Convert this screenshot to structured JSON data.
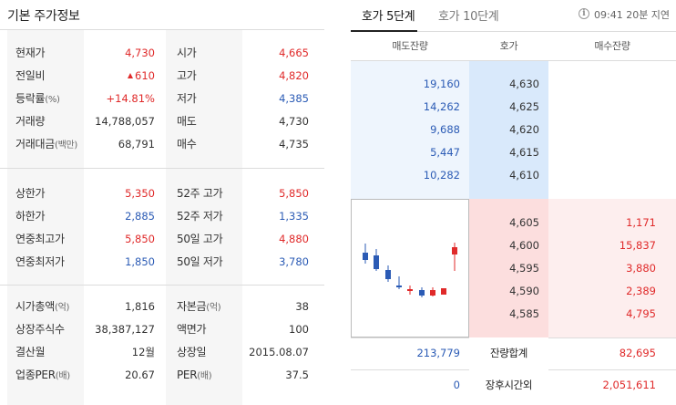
{
  "left": {
    "title": "기본 주가정보",
    "section1": [
      {
        "l_label": "현재가",
        "l_unit": "",
        "l_value": "4,730",
        "l_color": "red",
        "l_arrow": false,
        "r_label": "시가",
        "r_value": "4,665",
        "r_color": "red"
      },
      {
        "l_label": "전일비",
        "l_unit": "",
        "l_value": "610",
        "l_color": "red",
        "l_arrow": true,
        "r_label": "고가",
        "r_value": "4,820",
        "r_color": "red"
      },
      {
        "l_label": "등락률",
        "l_unit": "(%)",
        "l_value": "+14.81%",
        "l_color": "red",
        "l_arrow": false,
        "r_label": "저가",
        "r_value": "4,385",
        "r_color": "blue"
      },
      {
        "l_label": "거래량",
        "l_unit": "",
        "l_value": "14,788,057",
        "l_color": "",
        "l_arrow": false,
        "r_label": "매도",
        "r_value": "4,730",
        "r_color": ""
      },
      {
        "l_label": "거래대금",
        "l_unit": "(백만)",
        "l_value": "68,791",
        "l_color": "",
        "l_arrow": false,
        "r_label": "매수",
        "r_value": "4,735",
        "r_color": ""
      }
    ],
    "section2": [
      {
        "l_label": "상한가",
        "l_unit": "",
        "l_value": "5,350",
        "l_color": "red",
        "r_label": "52주 고가",
        "r_value": "5,850",
        "r_color": "red"
      },
      {
        "l_label": "하한가",
        "l_unit": "",
        "l_value": "2,885",
        "l_color": "blue",
        "r_label": "52주 저가",
        "r_value": "1,335",
        "r_color": "blue"
      },
      {
        "l_label": "연중최고가",
        "l_unit": "",
        "l_value": "5,850",
        "l_color": "red",
        "r_label": "50일 고가",
        "r_value": "4,880",
        "r_color": "red"
      },
      {
        "l_label": "연중최저가",
        "l_unit": "",
        "l_value": "1,850",
        "l_color": "blue",
        "r_label": "50일 저가",
        "r_value": "3,780",
        "r_color": "blue"
      }
    ],
    "section3": [
      {
        "l_label": "시가총액",
        "l_unit": "(억)",
        "l_value": "1,816",
        "l_color": "",
        "r_label": "자본금",
        "r_unit": "(억)",
        "r_value": "38",
        "r_color": ""
      },
      {
        "l_label": "상장주식수",
        "l_unit": "",
        "l_value": "38,387,127",
        "l_color": "",
        "r_label": "액면가",
        "r_unit": "",
        "r_value": "100",
        "r_color": ""
      },
      {
        "l_label": "결산월",
        "l_unit": "",
        "l_value": "12월",
        "l_color": "",
        "r_label": "상장일",
        "r_unit": "",
        "r_value": "2015.08.07",
        "r_color": ""
      },
      {
        "l_label": "업종PER",
        "l_unit": "(배)",
        "l_value": "20.67",
        "l_color": "",
        "r_label": "PER",
        "r_unit": "(배)",
        "r_value": "37.5",
        "r_color": ""
      }
    ]
  },
  "right": {
    "tabs": [
      "호가 5단계",
      "호가 10단계"
    ],
    "info_icon": "info-icon",
    "timestamp": "09:41 20분 지연",
    "headers": [
      "매도잔량",
      "호가",
      "매수잔량"
    ],
    "asks": [
      {
        "qty": "19,160",
        "price": "4,630"
      },
      {
        "qty": "14,262",
        "price": "4,625"
      },
      {
        "qty": "9,688",
        "price": "4,620"
      },
      {
        "qty": "5,447",
        "price": "4,615"
      },
      {
        "qty": "10,282",
        "price": "4,610"
      }
    ],
    "bids": [
      {
        "price": "4,605",
        "qty": "1,171"
      },
      {
        "price": "4,600",
        "qty": "15,837"
      },
      {
        "price": "4,595",
        "qty": "3,880"
      },
      {
        "price": "4,590",
        "qty": "2,389"
      },
      {
        "price": "4,585",
        "qty": "4,795"
      }
    ],
    "total": {
      "ask": "213,779",
      "label": "잔량합계",
      "bid": "82,695"
    },
    "after_hours": {
      "ask": "0",
      "label": "장후시간외",
      "bid": "2,051,611"
    },
    "colors": {
      "up": "#e02a2a",
      "down": "#2b5bb5"
    }
  }
}
